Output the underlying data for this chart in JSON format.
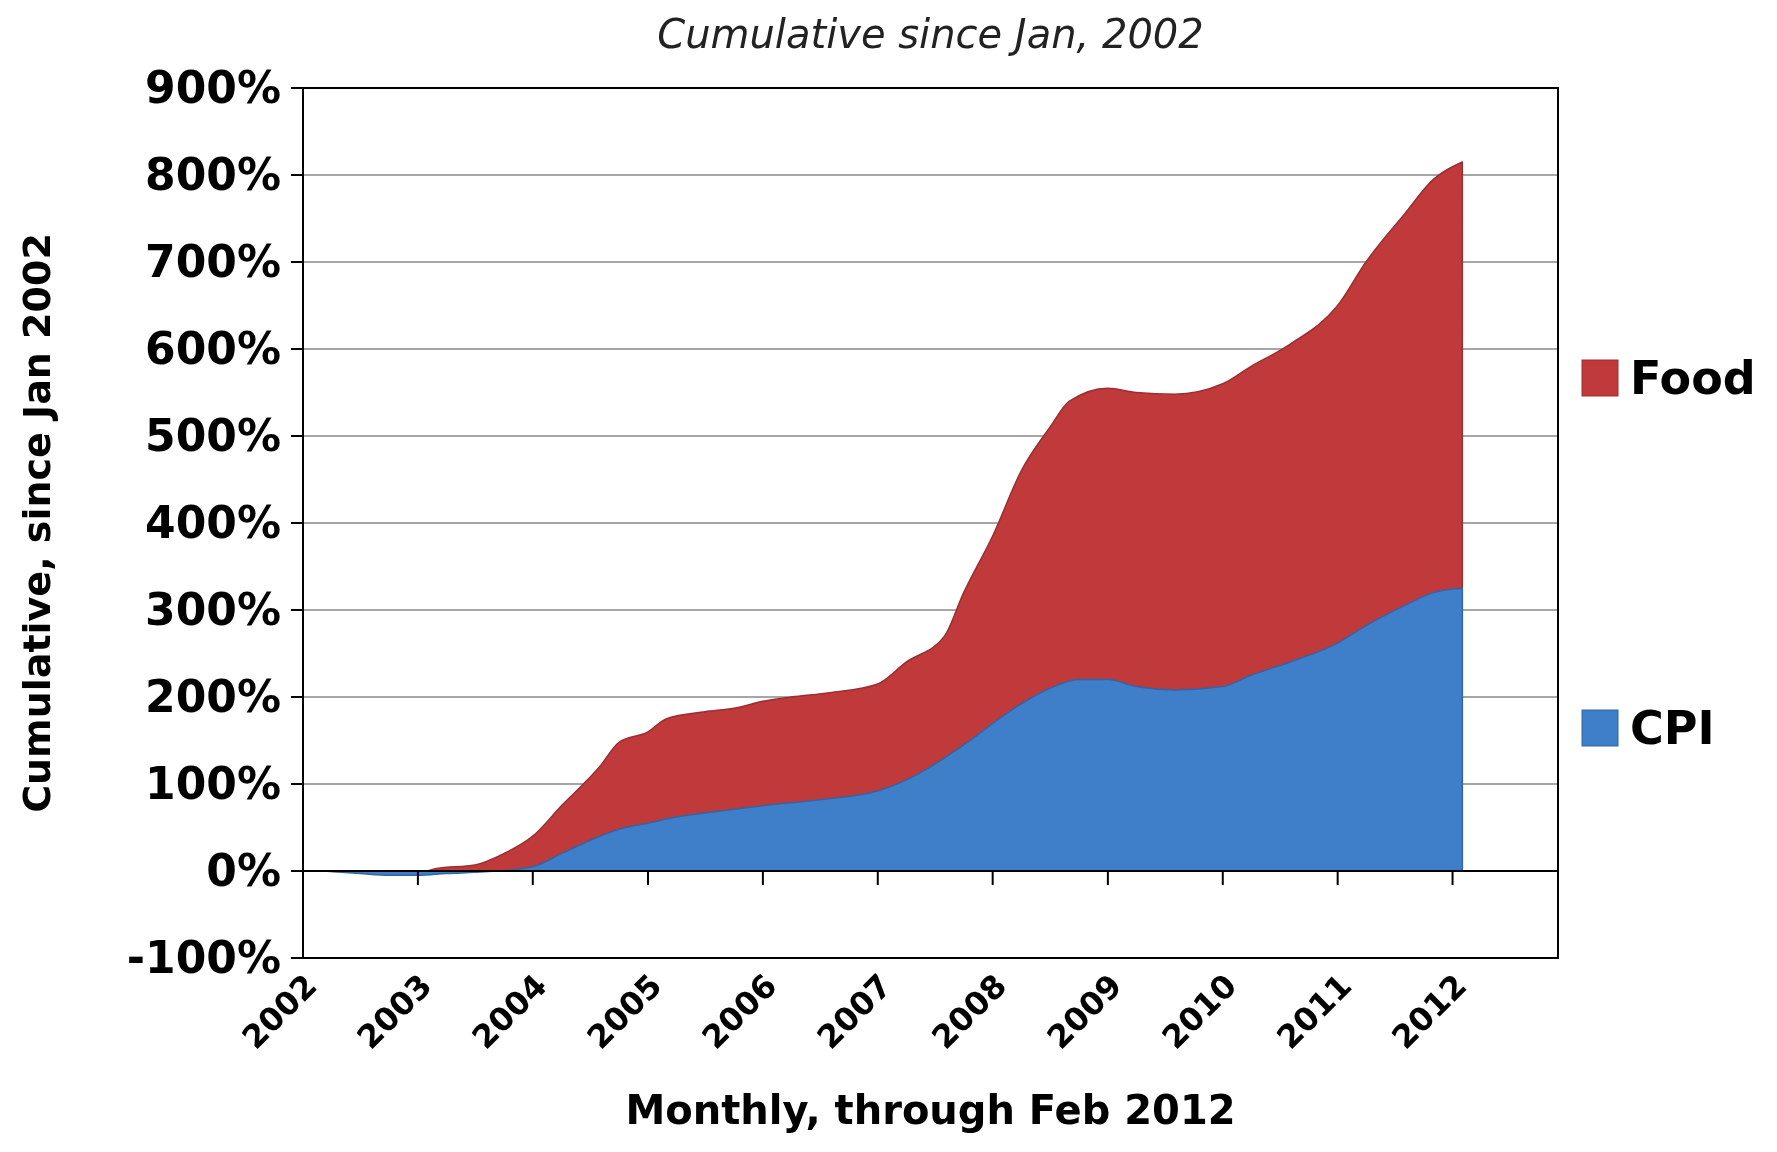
{
  "chart_data": {
    "type": "area",
    "title": "Cumulative since Jan, 2002",
    "xlabel": "Monthly, through Feb 2012",
    "ylabel": "Cumulative, since Jan 2002",
    "xlim": [
      "2002-01",
      "2012-12"
    ],
    "xticks": [
      {
        "value": "2002-01",
        "label": "2002"
      },
      {
        "value": "2003-01",
        "label": "2003"
      },
      {
        "value": "2004-01",
        "label": "2004"
      },
      {
        "value": "2005-01",
        "label": "2005"
      },
      {
        "value": "2006-01",
        "label": "2006"
      },
      {
        "value": "2007-01",
        "label": "2007"
      },
      {
        "value": "2008-01",
        "label": "2008"
      },
      {
        "value": "2009-01",
        "label": "2009"
      },
      {
        "value": "2010-01",
        "label": "2010"
      },
      {
        "value": "2011-01",
        "label": "2011"
      },
      {
        "value": "2012-01",
        "label": "2012"
      }
    ],
    "ylim": [
      -100,
      900
    ],
    "yticks": [
      {
        "value": -100,
        "label": "-100%"
      },
      {
        "value": 0,
        "label": "0%"
      },
      {
        "value": 100,
        "label": "100%"
      },
      {
        "value": 200,
        "label": "200%"
      },
      {
        "value": 300,
        "label": "300%"
      },
      {
        "value": 400,
        "label": "400%"
      },
      {
        "value": 500,
        "label": "500%"
      },
      {
        "value": 600,
        "label": "600%"
      },
      {
        "value": 700,
        "label": "700%"
      },
      {
        "value": 800,
        "label": "800%"
      },
      {
        "value": 900,
        "label": "900%"
      }
    ],
    "grid": "y",
    "legend": "right",
    "series": [
      {
        "name": "Food",
        "color": "#c0393b",
        "x": [
          "2002-03",
          "2002-07",
          "2003-01",
          "2003-03",
          "2003-07",
          "2003-10",
          "2004-01",
          "2004-04",
          "2004-08",
          "2004-10",
          "2005-01",
          "2005-03",
          "2005-07",
          "2005-10",
          "2006-01",
          "2006-04",
          "2006-08",
          "2007-01",
          "2007-04",
          "2007-08",
          "2007-10",
          "2008-01",
          "2008-04",
          "2008-07",
          "2008-09",
          "2009-01",
          "2009-04",
          "2009-08",
          "2010-01",
          "2010-04",
          "2010-08",
          "2011-01",
          "2011-04",
          "2011-08",
          "2011-11",
          "2012-02"
        ],
        "values": [
          0,
          -1,
          -2,
          3,
          7,
          20,
          40,
          75,
          120,
          148,
          160,
          175,
          183,
          187,
          195,
          200,
          205,
          215,
          240,
          270,
          320,
          385,
          460,
          510,
          540,
          555,
          550,
          548,
          560,
          580,
          605,
          650,
          700,
          755,
          795,
          815
        ]
      },
      {
        "name": "CPI",
        "color": "#3f7ec9",
        "x": [
          "2002-03",
          "2002-07",
          "2002-10",
          "2003-01",
          "2003-04",
          "2003-08",
          "2004-01",
          "2004-04",
          "2004-08",
          "2004-10",
          "2005-01",
          "2005-04",
          "2005-08",
          "2006-01",
          "2006-07",
          "2007-01",
          "2007-05",
          "2007-10",
          "2008-03",
          "2008-07",
          "2008-10",
          "2009-01",
          "2009-04",
          "2009-08",
          "2010-01",
          "2010-04",
          "2010-08",
          "2011-01",
          "2011-04",
          "2011-08",
          "2011-11",
          "2012-02"
        ],
        "values": [
          0,
          -3,
          -5,
          -5,
          -3,
          -1,
          5,
          20,
          40,
          48,
          55,
          62,
          68,
          75,
          82,
          92,
          110,
          145,
          185,
          210,
          220,
          220,
          212,
          208,
          212,
          225,
          240,
          262,
          282,
          305,
          320,
          325
        ]
      }
    ]
  }
}
